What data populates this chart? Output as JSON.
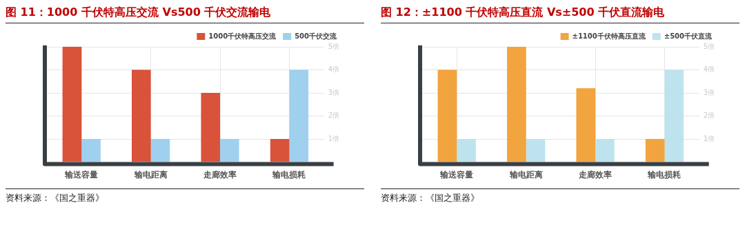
{
  "chart_data": [
    {
      "type": "bar",
      "title": "图 11：1000 千伏特高压交流 Vs500 千伏交流输电",
      "categories": [
        "输送容量",
        "输电距离",
        "走廊效率",
        "输电损耗"
      ],
      "series": [
        {
          "name": "1000千伏特高压交流",
          "color": "#d9523a",
          "values": [
            5,
            4,
            3,
            1
          ]
        },
        {
          "name": "500千伏交流",
          "color": "#9fd0ee",
          "values": [
            1,
            1,
            1,
            4
          ]
        }
      ],
      "ylim": [
        0,
        5
      ],
      "yticks": [
        {
          "value": 1,
          "label": "1倍"
        },
        {
          "value": 2,
          "label": "2倍"
        },
        {
          "value": 3,
          "label": "3倍"
        },
        {
          "value": 4,
          "label": "4倍"
        },
        {
          "value": 5,
          "label": "5倍"
        }
      ],
      "grid": true,
      "legend": "top right",
      "annotations": [
        "资料来源：《国之重器》"
      ]
    },
    {
      "type": "bar",
      "title": "图 12：±1100 千伏特高压直流 Vs±500 千伏直流输电",
      "categories": [
        "输送容量",
        "输电距离",
        "走廊效率",
        "输电损耗"
      ],
      "series": [
        {
          "name": "±1100千伏特高压直流",
          "color": "#f2a43f",
          "values": [
            4,
            5,
            3.2,
            1
          ]
        },
        {
          "name": "±500千伏直流",
          "color": "#bfe3ee",
          "values": [
            1,
            1,
            1,
            4
          ]
        }
      ],
      "ylim": [
        0,
        5
      ],
      "yticks": [
        {
          "value": 1,
          "label": "1倍"
        },
        {
          "value": 2,
          "label": "2倍"
        },
        {
          "value": 3,
          "label": "3倍"
        },
        {
          "value": 4,
          "label": "4倍"
        },
        {
          "value": 5,
          "label": "5倍"
        }
      ],
      "grid": true,
      "legend": "top right",
      "annotations": [
        "资料来源：《国之重器》"
      ]
    }
  ]
}
